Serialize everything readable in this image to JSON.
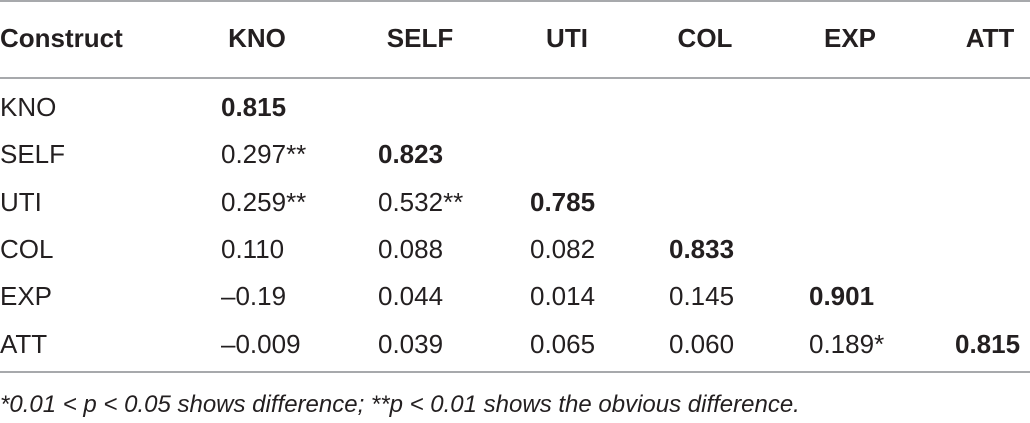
{
  "table": {
    "header": [
      "Construct",
      "KNO",
      "SELF",
      "UTI",
      "COL",
      "EXP",
      "ATT"
    ],
    "rows": [
      [
        "KNO",
        "0.815"
      ],
      [
        "SELF",
        "0.297**",
        "0.823"
      ],
      [
        "UTI",
        "0.259**",
        "0.532**",
        "0.785"
      ],
      [
        "COL",
        "0.110",
        "0.088",
        "0.082",
        "0.833"
      ],
      [
        "EXP",
        "–0.19",
        "0.044",
        "0.014",
        "0.145",
        "0.901"
      ],
      [
        "ATT",
        "–0.009",
        "0.039",
        "0.065",
        "0.060",
        "0.189*",
        "0.815"
      ]
    ],
    "footnote": "*0.01 < p < 0.05 shows difference; **p < 0.01 shows the obvious difference."
  }
}
